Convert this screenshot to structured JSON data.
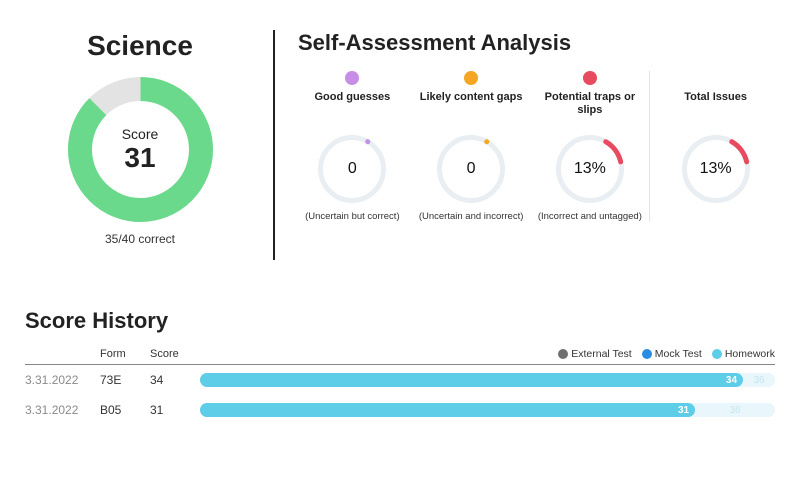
{
  "subject": "Science",
  "score_donut": {
    "label": "Score",
    "value": 31,
    "correct_text": "35/40 correct",
    "pct": 0.875,
    "fg_color": "#6ad98c",
    "bg_color": "#e3e3e3",
    "size": 145,
    "thickness": 24
  },
  "assessment": {
    "title": "Self-Assessment Analysis",
    "ring_size": 68,
    "ring_thickness": 5,
    "ring_track_color": "#e8eef2",
    "categories": [
      {
        "dot_color": "#c88de6",
        "label": "Good guesses",
        "value_text": "0",
        "pct": 0,
        "arc_color": "#c88de6",
        "sub": "(Uncertain but correct)"
      },
      {
        "dot_color": "#f5a623",
        "label": "Likely content gaps",
        "value_text": "0",
        "pct": 0,
        "arc_color": "#f5a623",
        "sub": "(Uncertain and incorrect)"
      },
      {
        "dot_color": "#e84a5f",
        "label": "Potential traps or slips",
        "value_text": "13%",
        "pct": 0.13,
        "arc_color": "#e84a5f",
        "sub": "(Incorrect and untagged)"
      }
    ],
    "total": {
      "label": "Total Issues",
      "value_text": "13%",
      "pct": 0.13,
      "arc_color": "#e84a5f"
    }
  },
  "history": {
    "title": "Score History",
    "columns": {
      "form": "Form",
      "score": "Score"
    },
    "legend": [
      {
        "label": "External Test",
        "color": "#6f6f6f"
      },
      {
        "label": "Mock Test",
        "color": "#2a8de0"
      },
      {
        "label": "Homework",
        "color": "#5ecde8"
      }
    ],
    "max_score": 36,
    "bar_color": "#5ecde8",
    "track_color": "#e9f6fb",
    "rows": [
      {
        "date": "3.31.2022",
        "form": "73E",
        "score": 34,
        "tail": "36"
      },
      {
        "date": "3.31.2022",
        "form": "B05",
        "score": 31,
        "tail": "36"
      }
    ]
  }
}
